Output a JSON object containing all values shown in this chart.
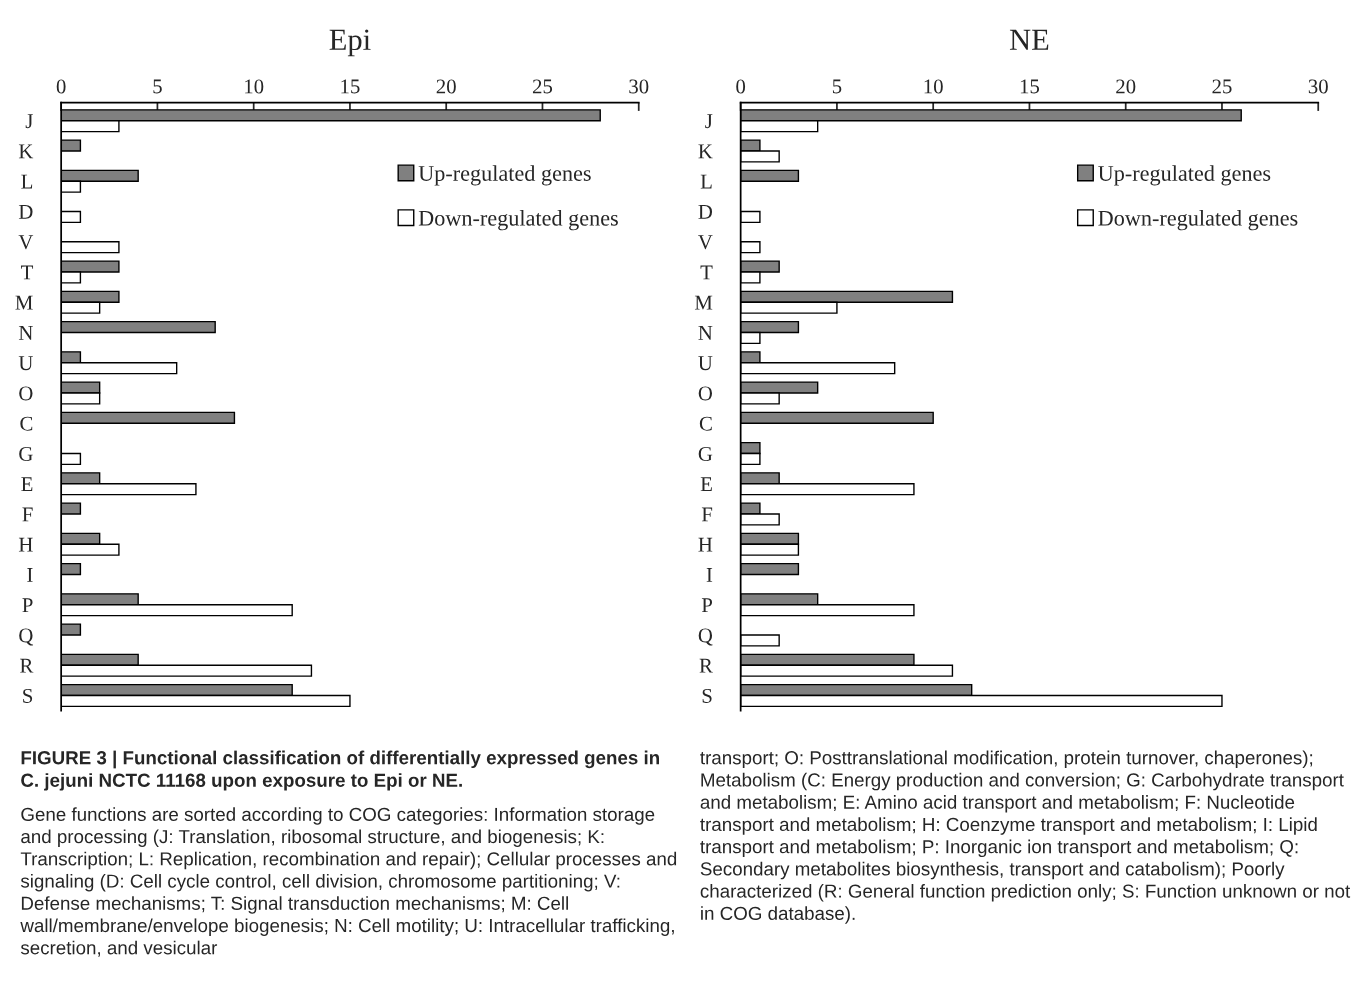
{
  "chart_data": [
    {
      "type": "bar",
      "orientation": "horizontal",
      "title": "Epi",
      "categories": [
        "J",
        "K",
        "L",
        "D",
        "V",
        "T",
        "M",
        "N",
        "U",
        "O",
        "C",
        "G",
        "E",
        "F",
        "H",
        "I",
        "P",
        "Q",
        "R",
        "S"
      ],
      "series": [
        {
          "name": "Up-regulated genes",
          "color": "#808080",
          "values": [
            28,
            1,
            4,
            0,
            0,
            3,
            3,
            8,
            1,
            2,
            9,
            0,
            2,
            1,
            2,
            1,
            4,
            1,
            4,
            12
          ]
        },
        {
          "name": "Down-regulated genes",
          "color": "#ffffff",
          "values": [
            3,
            0,
            1,
            1,
            3,
            1,
            2,
            0,
            6,
            2,
            0,
            1,
            7,
            0,
            3,
            0,
            12,
            0,
            13,
            15
          ]
        }
      ],
      "xlim": [
        0,
        30
      ],
      "xticks": [
        0,
        5,
        10,
        15,
        20,
        25,
        30
      ],
      "legend": "upper right",
      "grid": false,
      "annotations": [
        "FIGURE 3 | Functional classification of differentially expressed genes in C. jejuni NCTC 11168 upon exposure to Epi or NE.",
        "Gene functions are sorted according to COG categories: Information storage and processing (J: Translation, ribosomal structure, and biogenesis; K: Transcription; L: Replication, recombination and repair); Cellular processes and signaling (D: Cell cycle control, cell division, chromosome partitioning; V: Defense mechanisms; T: Signal transduction mechanisms; M: Cell wall/membrane/envelope biogenesis; N: Cell motility; U: Intracellular trafficking, secretion, and vesicular"
      ]
    },
    {
      "type": "bar",
      "orientation": "horizontal",
      "title": "NE",
      "categories": [
        "J",
        "K",
        "L",
        "D",
        "V",
        "T",
        "M",
        "N",
        "U",
        "O",
        "C",
        "G",
        "E",
        "F",
        "H",
        "I",
        "P",
        "Q",
        "R",
        "S"
      ],
      "series": [
        {
          "name": "Up-regulated genes",
          "color": "#808080",
          "values": [
            26,
            1,
            3,
            0,
            0,
            2,
            11,
            3,
            1,
            4,
            10,
            1,
            2,
            1,
            3,
            3,
            4,
            0,
            9,
            12
          ]
        },
        {
          "name": "Down-regulated genes",
          "color": "#ffffff",
          "values": [
            4,
            2,
            0,
            1,
            1,
            1,
            5,
            1,
            8,
            2,
            0,
            1,
            9,
            2,
            3,
            0,
            9,
            2,
            11,
            25
          ]
        }
      ],
      "xlim": [
        0,
        30
      ],
      "xticks": [
        0,
        5,
        10,
        15,
        20,
        25,
        30
      ],
      "legend": "upper right",
      "grid": false,
      "annotations": [
        "transport; O: Posttranslational modification, protein turnover, chaperones); Metabolism (C: Energy production and conversion; G: Carbohydrate transport and metabolism; E: Amino acid transport and metabolism; F: Nucleotide transport and metabolism; H: Coenzyme transport and metabolism; I: Lipid transport and metabolism; P: Inorganic ion transport and metabolism; Q: Secondary metabolites biosynthesis, transport and catabolism); Poorly characterized (R: General function prediction only; S: Function unknown or not in COG database)."
      ]
    }
  ]
}
